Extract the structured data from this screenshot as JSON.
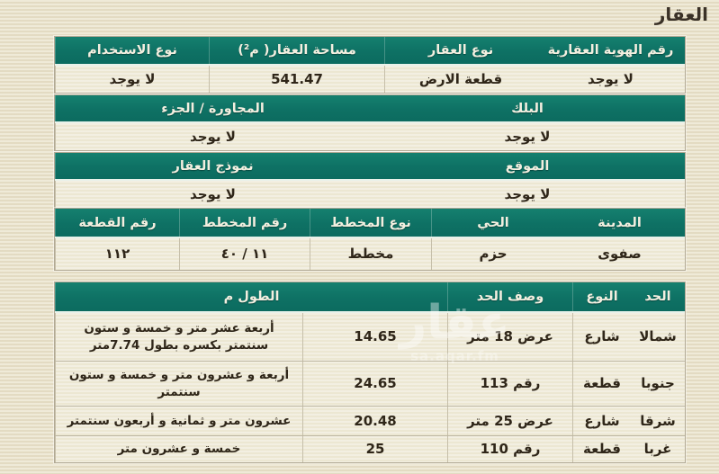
{
  "title": "العقار",
  "colors": {
    "header_bg": "#0f7367",
    "page_bg": "#e8e1c7",
    "cell_bg": "#ece7d2",
    "header_text": "#f3efe0",
    "cell_text": "#2f2619"
  },
  "watermark": {
    "logo": "عقار",
    "site": "sa.aqar.fm"
  },
  "property_table": {
    "headers": [
      "رقم الهوية العقارية",
      "نوع العقار",
      "مساحة العقار( م²)",
      "نوع الاستخدام"
    ],
    "values": [
      "لا يوجد",
      "قطعة الارض",
      "541.47",
      "لا يوجد"
    ]
  },
  "block_section": {
    "headers": [
      "البلك",
      "المجاورة / الجزء"
    ],
    "values": [
      "لا يوجد",
      "لا يوجد"
    ]
  },
  "location_section": {
    "headers": [
      "الموقع",
      "نموذج العقار"
    ],
    "values": [
      "لا يوجد",
      "لا يوجد"
    ]
  },
  "plan_table": {
    "headers": [
      "المدينة",
      "الحي",
      "نوع المخطط",
      "رقم المخطط",
      "رقم القطعة"
    ],
    "values": [
      "صفوى",
      "حزم",
      "مخطط",
      "١١ / ٤٠",
      "١١٢"
    ]
  },
  "boundaries_table": {
    "headers": [
      "الحد",
      "النوع",
      "وصف الحد",
      "الطول م"
    ],
    "rows": [
      {
        "side": "شمالا",
        "type": "شارع",
        "description": "عرض 18 متر",
        "length": "14.65",
        "length_text": "أربعة عشر متر و خمسة و ستون سنتمتر بكسره بطول 7.74متر"
      },
      {
        "side": "جنوبا",
        "type": "قطعة",
        "description": "رقم 113",
        "length": "24.65",
        "length_text": "أربعة و عشرون متر و خمسة و ستون سنتمتر"
      },
      {
        "side": "شرقا",
        "type": "شارع",
        "description": "عرض 25 متر",
        "length": "20.48",
        "length_text": "عشرون متر و ثمانية و أربعون سنتمتر"
      },
      {
        "side": "غربا",
        "type": "قطعة",
        "description": "رقم 110",
        "length": "25",
        "length_text": "خمسة و عشرون متر"
      }
    ]
  }
}
